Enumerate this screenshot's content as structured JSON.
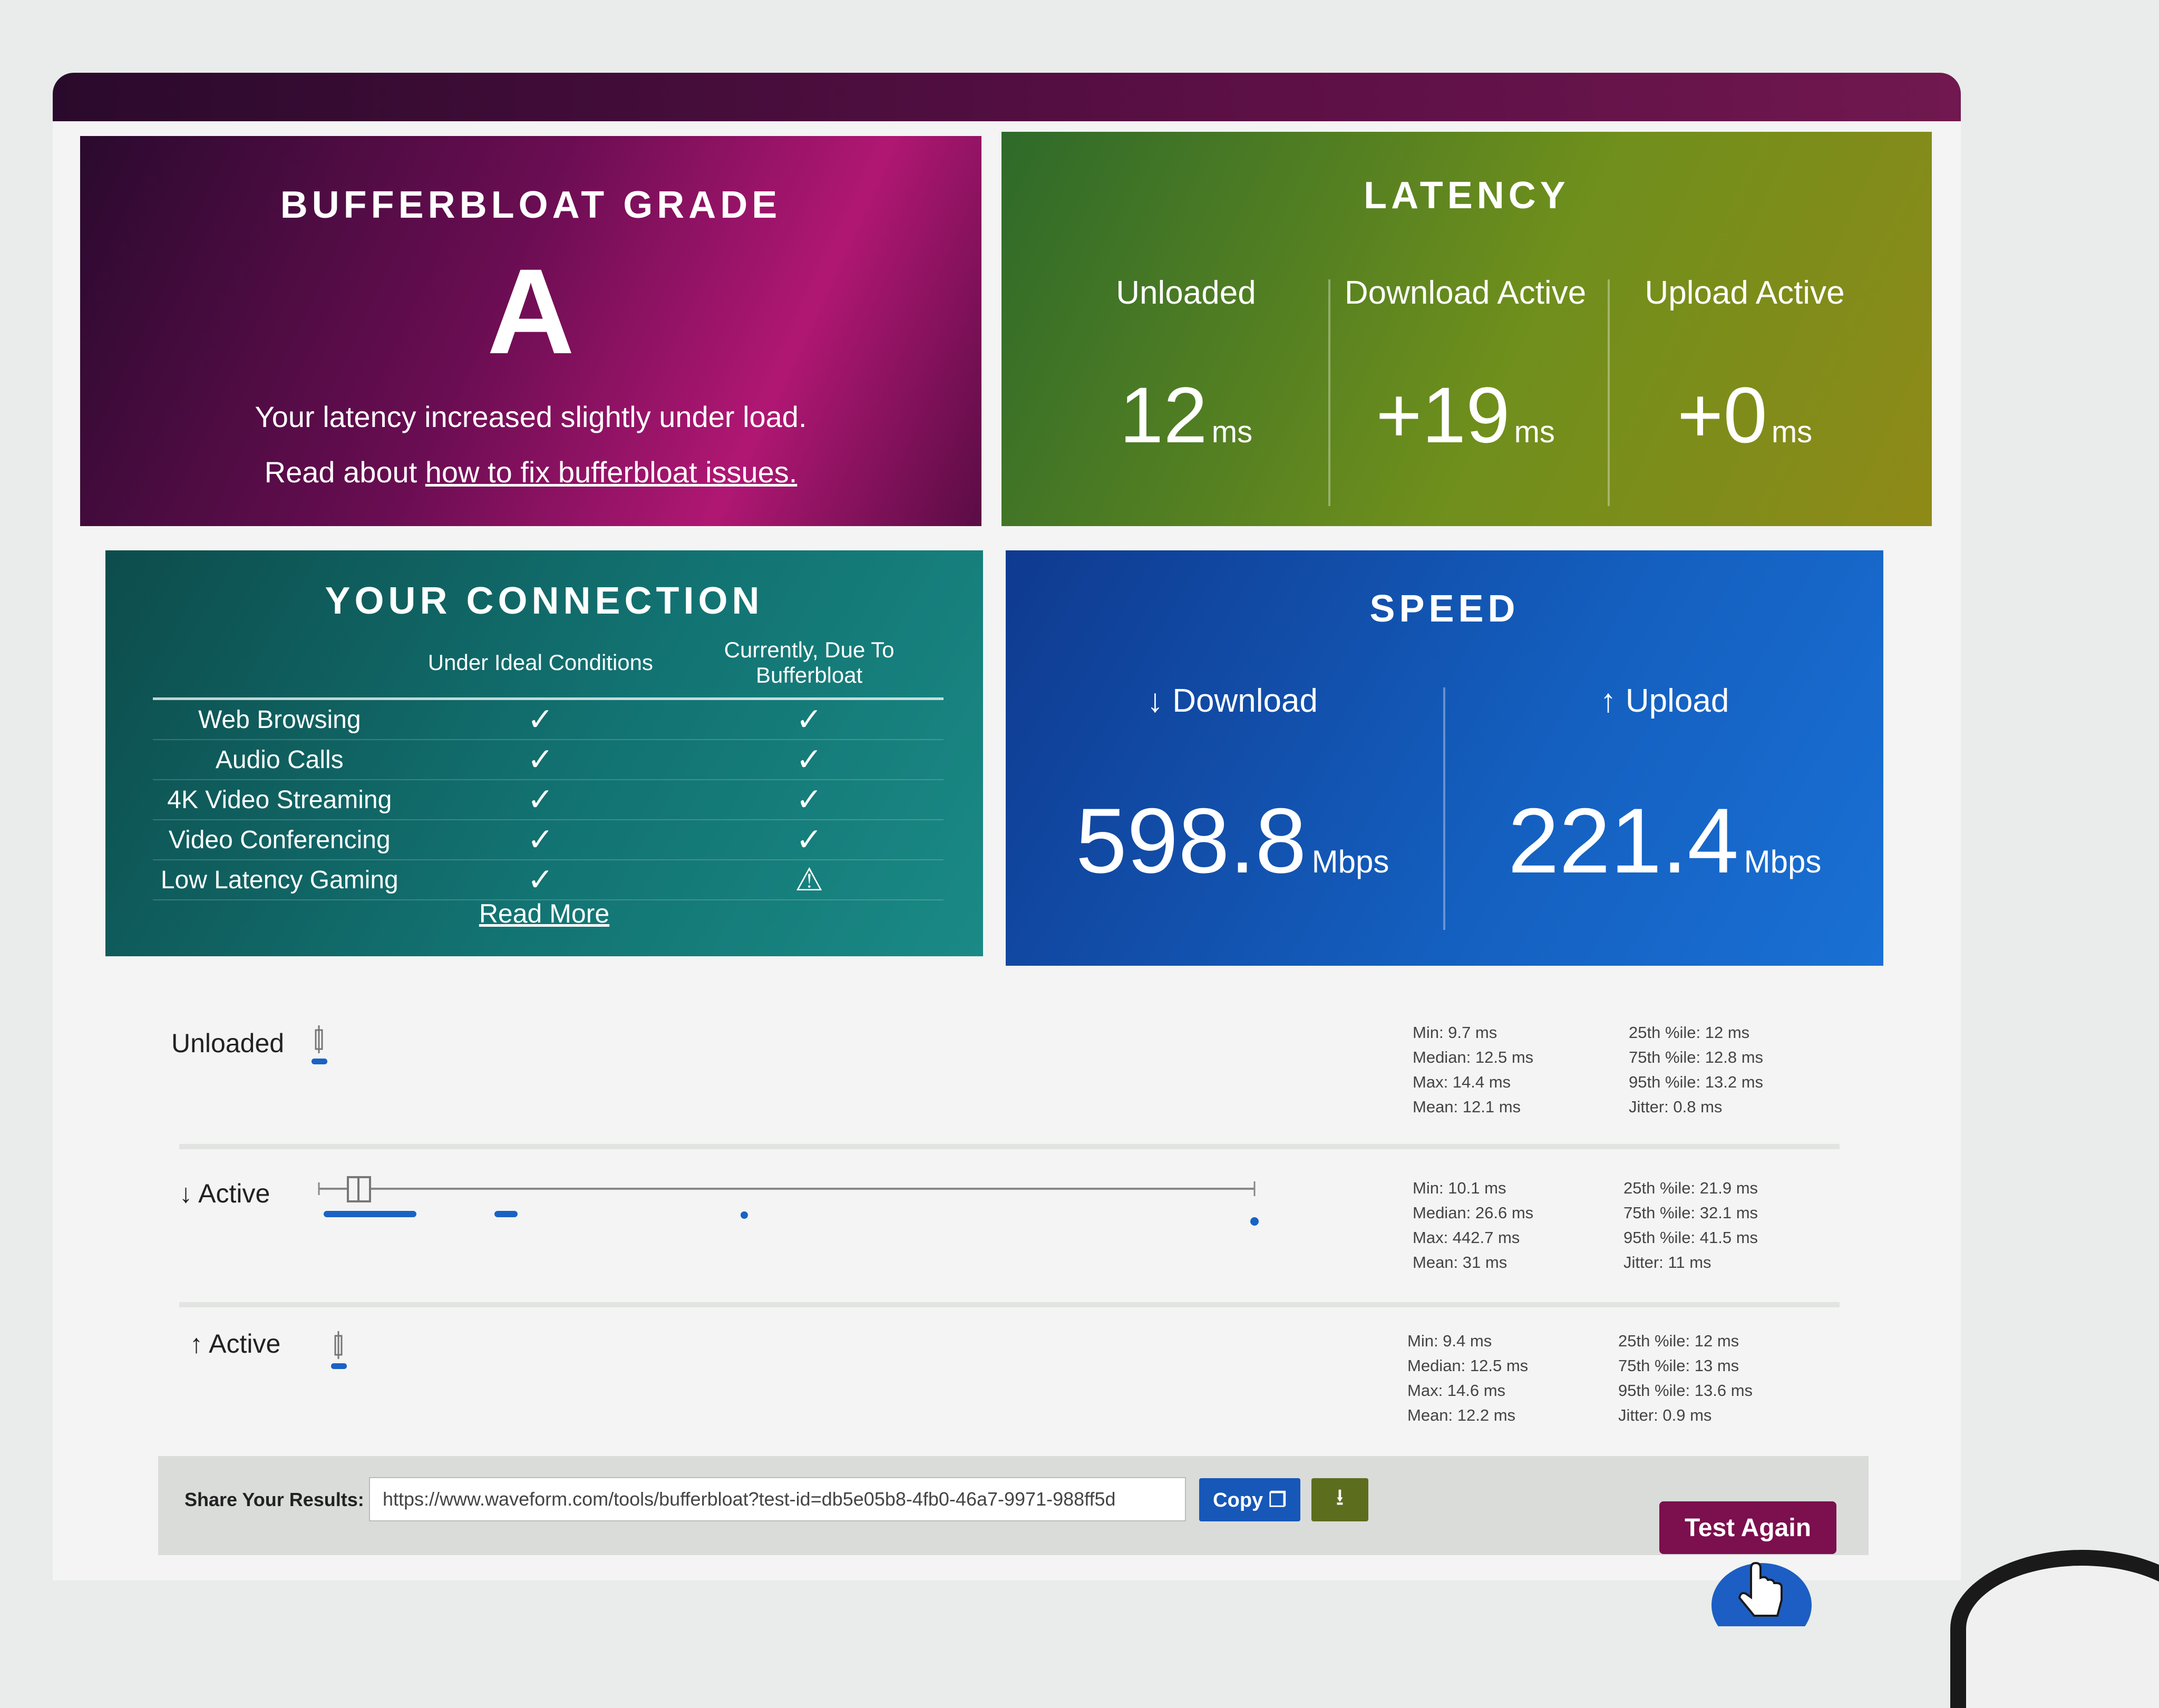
{
  "grade": {
    "title": "BUFFERBLOAT GRADE",
    "letter": "A",
    "message": "Your latency increased slightly under load.",
    "link_prefix": "Read about ",
    "link_text": "how to fix bufferbloat issues."
  },
  "latency": {
    "title": "LATENCY",
    "columns": [
      {
        "label": "Unloaded",
        "value": "12",
        "unit": "ms"
      },
      {
        "label": "Download Active",
        "value": "+19",
        "unit": "ms"
      },
      {
        "label": "Upload Active",
        "value": "+0",
        "unit": "ms"
      }
    ]
  },
  "connection": {
    "title": "YOUR CONNECTION",
    "col_ideal": "Under Ideal Conditions",
    "col_current": "Currently, Due To Bufferbloat",
    "rows": [
      {
        "label": "Web Browsing",
        "ideal": "✓",
        "current": "✓"
      },
      {
        "label": "Audio Calls",
        "ideal": "✓",
        "current": "✓"
      },
      {
        "label": "4K Video Streaming",
        "ideal": "✓",
        "current": "✓"
      },
      {
        "label": "Video Conferencing",
        "ideal": "✓",
        "current": "✓"
      },
      {
        "label": "Low Latency Gaming",
        "ideal": "✓",
        "current": "⚠"
      }
    ],
    "read_more": "Read More"
  },
  "speed": {
    "title": "SPEED",
    "download_label": "↓ Download",
    "download_value": "598.8",
    "download_unit": "Mbps",
    "upload_label": "↑ Upload",
    "upload_value": "221.4",
    "upload_unit": "Mbps"
  },
  "latency_details": [
    {
      "label": "Unloaded",
      "stats_left": [
        "Min: 9.7 ms",
        "Median: 12.5 ms",
        "Max: 14.4 ms",
        "Mean: 12.1 ms"
      ],
      "stats_right": [
        "25th %ile: 12 ms",
        "75th %ile: 12.8 ms",
        "95th %ile: 13.2 ms",
        "Jitter: 0.8 ms"
      ]
    },
    {
      "label": "↓ Active",
      "stats_left": [
        "Min: 10.1 ms",
        "Median: 26.6 ms",
        "Max: 442.7 ms",
        "Mean: 31 ms"
      ],
      "stats_right": [
        "25th %ile: 21.9 ms",
        "75th %ile: 32.1 ms",
        "95th %ile: 41.5 ms",
        "Jitter: 11 ms"
      ]
    },
    {
      "label": "↑ Active",
      "stats_left": [
        "Min: 9.4 ms",
        "Median: 12.5 ms",
        "Max: 14.6 ms",
        "Mean: 12.2 ms"
      ],
      "stats_right": [
        "25th %ile: 12 ms",
        "75th %ile: 13 ms",
        "95th %ile: 13.6 ms",
        "Jitter: 0.9 ms"
      ]
    }
  ],
  "share": {
    "label": "Share Your Results:",
    "url": "https://www.waveform.com/tools/bufferbloat?test-id=db5e05b8-4fb0-46a7-9971-988ff5d",
    "copy_label": "Copy",
    "download_icon": "download-icon",
    "test_again_label": "Test Again"
  },
  "colors": {
    "grade_bg": "#6a0d52",
    "latency_bg": "#6f8f1c",
    "connection_bg": "#127372",
    "speed_bg": "#1460c0",
    "plot_blue": "#1a62c4",
    "test_again": "#7c0f4e"
  }
}
